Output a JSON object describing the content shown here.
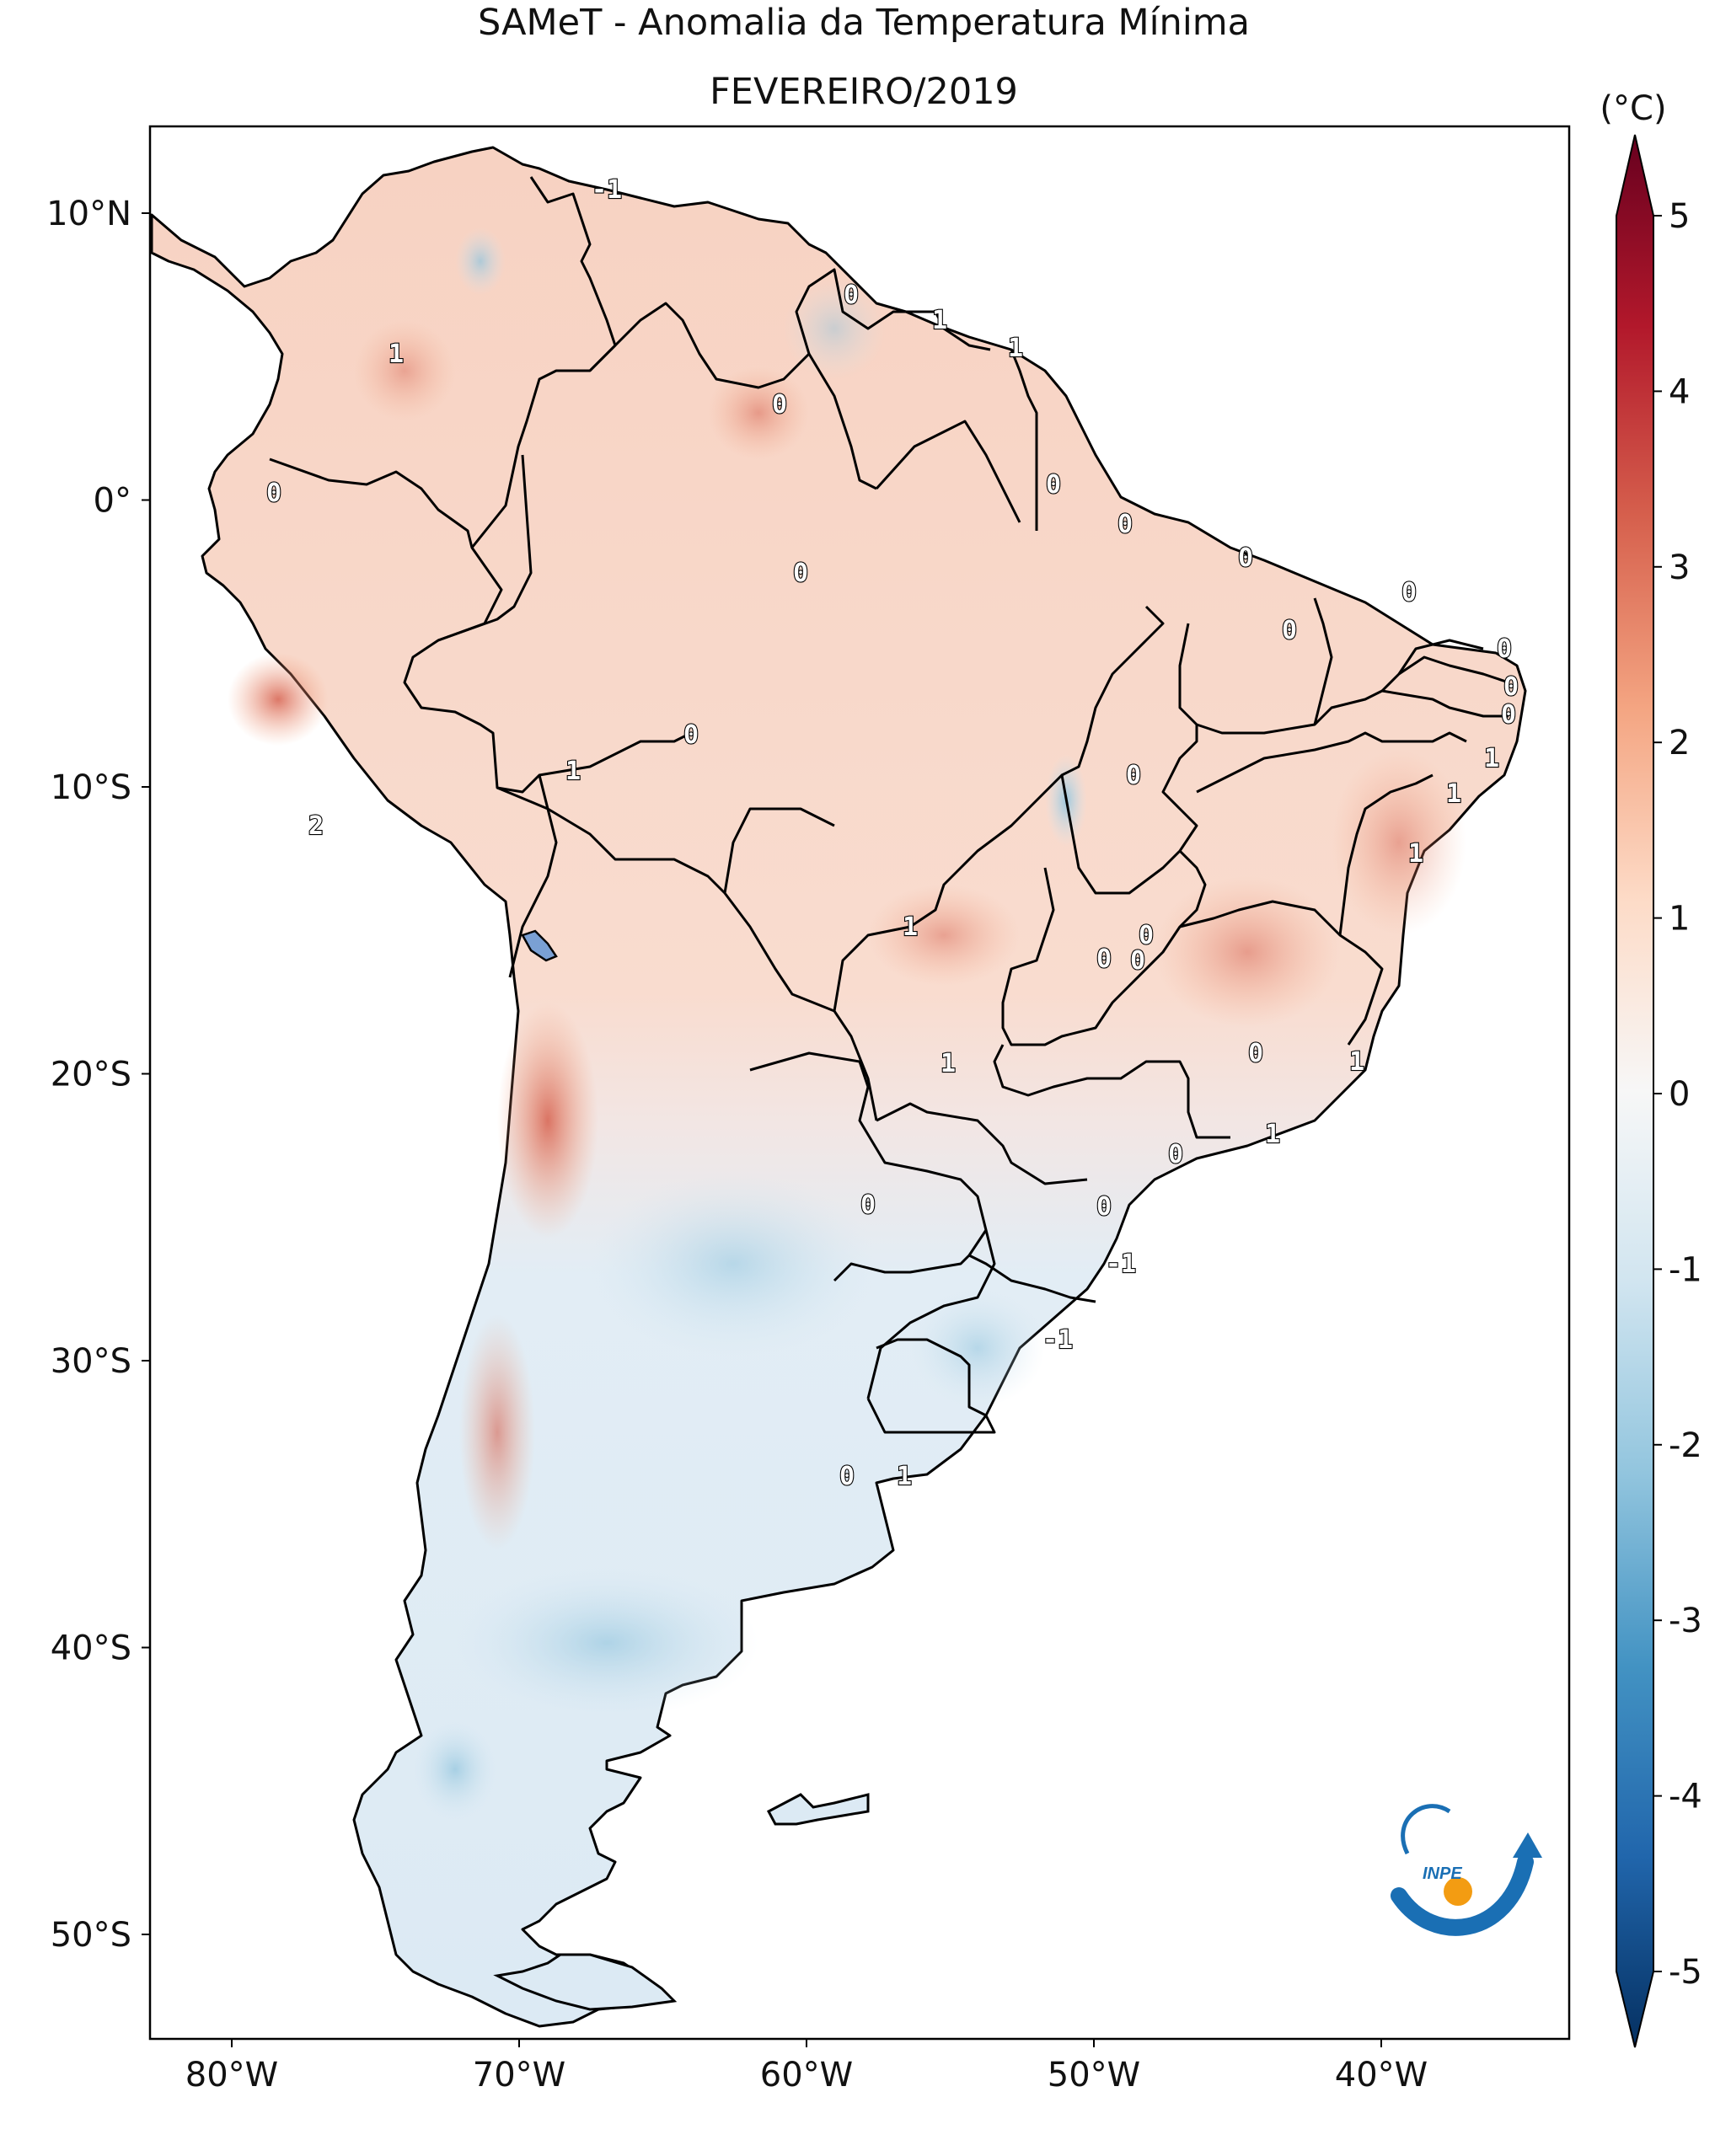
{
  "title": "SAMeT - Anomalia da Temperatura Mínima",
  "subtitle": "FEVEREIRO/2019",
  "colorbar": {
    "unit": "(°C)",
    "ticks": [
      "5",
      "4",
      "3",
      "2",
      "1",
      "0",
      "-1",
      "-2",
      "-3",
      "-4",
      "-5"
    ],
    "range": [
      -5,
      5
    ],
    "colormap": "RdBu_r",
    "extend": "both"
  },
  "axes": {
    "lon_ticks": [
      "80°W",
      "70°W",
      "60°W",
      "50°W",
      "40°W"
    ],
    "lat_ticks": [
      "10°N",
      "0°",
      "10°S",
      "20°S",
      "30°S",
      "40°S",
      "50°S"
    ]
  },
  "contour_labels": [
    "-1",
    "0",
    "1",
    "1",
    "1",
    "0",
    "0",
    "0",
    "0",
    "0",
    "0",
    "0",
    "0",
    "0",
    "0",
    "0",
    "1",
    "1",
    "1",
    "0",
    "1",
    "2",
    "0",
    "0",
    "1",
    "0",
    "0",
    "1",
    "0",
    "1",
    "1",
    "0",
    "0",
    "0",
    "-1",
    "-1",
    "0",
    "1"
  ],
  "logo": {
    "text": "INPE",
    "colors": {
      "blue": "#1a6fb4",
      "orange": "#f39c12"
    }
  },
  "colors": {
    "land_border": "#000000",
    "ocean": "#ffffff",
    "warm": "#d6604d",
    "cool": "#92c5de"
  }
}
